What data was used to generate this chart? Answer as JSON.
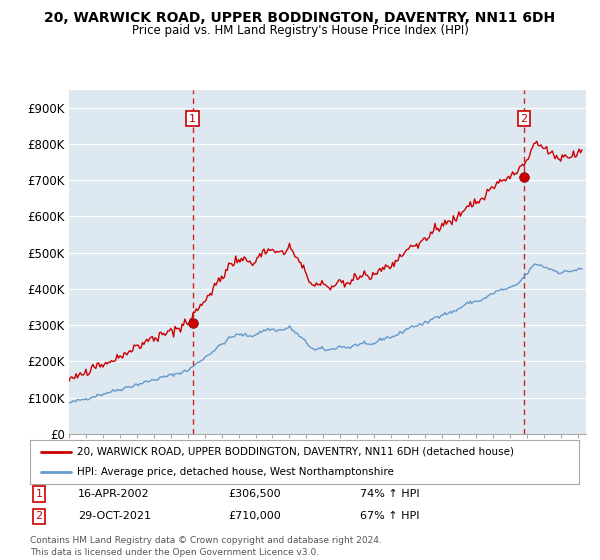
{
  "title": "20, WARWICK ROAD, UPPER BODDINGTON, DAVENTRY, NN11 6DH",
  "subtitle": "Price paid vs. HM Land Registry's House Price Index (HPI)",
  "ylabel_ticks": [
    "£0",
    "£100K",
    "£200K",
    "£300K",
    "£400K",
    "£500K",
    "£600K",
    "£700K",
    "£800K",
    "£900K"
  ],
  "ytick_values": [
    0,
    100000,
    200000,
    300000,
    400000,
    500000,
    600000,
    700000,
    800000,
    900000
  ],
  "ylim": [
    0,
    950000
  ],
  "xlim_start": 1995.0,
  "xlim_end": 2025.5,
  "line1_color": "#cc0000",
  "line2_color": "#6699cc",
  "vline_color": "#cc0000",
  "chart_bg": "#dde8f0",
  "legend_line1": "20, WARWICK ROAD, UPPER BODDINGTON, DAVENTRY, NN11 6DH (detached house)",
  "legend_line2": "HPI: Average price, detached house, West Northamptonshire",
  "sale1_date": "16-APR-2002",
  "sale1_price": "£306,500",
  "sale1_hpi": "74% ↑ HPI",
  "sale2_date": "29-OCT-2021",
  "sale2_price": "£710,000",
  "sale2_hpi": "67% ↑ HPI",
  "footer": "Contains HM Land Registry data © Crown copyright and database right 2024.\nThis data is licensed under the Open Government Licence v3.0.",
  "vline1_x": 2002.29,
  "vline2_x": 2021.83,
  "sale1_marker_y": 306500,
  "sale2_marker_y": 710000,
  "background_color": "#ffffff",
  "grid_color": "#ffffff"
}
